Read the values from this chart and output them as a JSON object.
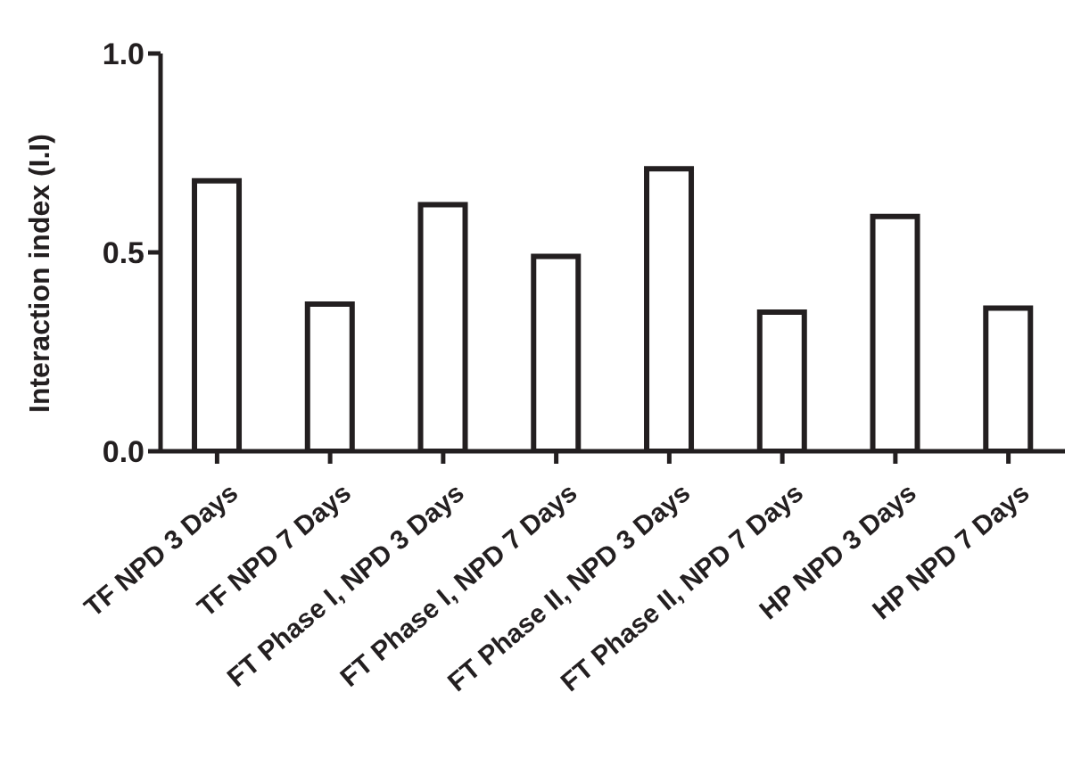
{
  "chart_data": {
    "type": "bar",
    "ylabel": "Interaction index (I.I)",
    "categories": [
      "TF NPD 3 Days",
      "TF NPD 7 Days",
      "FT Phase I, NPD 3 Days",
      "FT Phase I, NPD 7 Days",
      "FT Phase II, NPD 3 Days",
      "FT Phase II, NPD 7 Days",
      "HP NPD 3 Days",
      "HP NPD 7 Days"
    ],
    "values": [
      0.68,
      0.37,
      0.62,
      0.49,
      0.71,
      0.35,
      0.59,
      0.36
    ],
    "color": "#ffffff",
    "ylim": [
      0,
      1
    ],
    "yticks": [
      {
        "value": 0,
        "label": "0.0"
      },
      {
        "value": 0.5,
        "label": "0.5"
      },
      {
        "value": 1,
        "label": "1.0"
      }
    ]
  }
}
